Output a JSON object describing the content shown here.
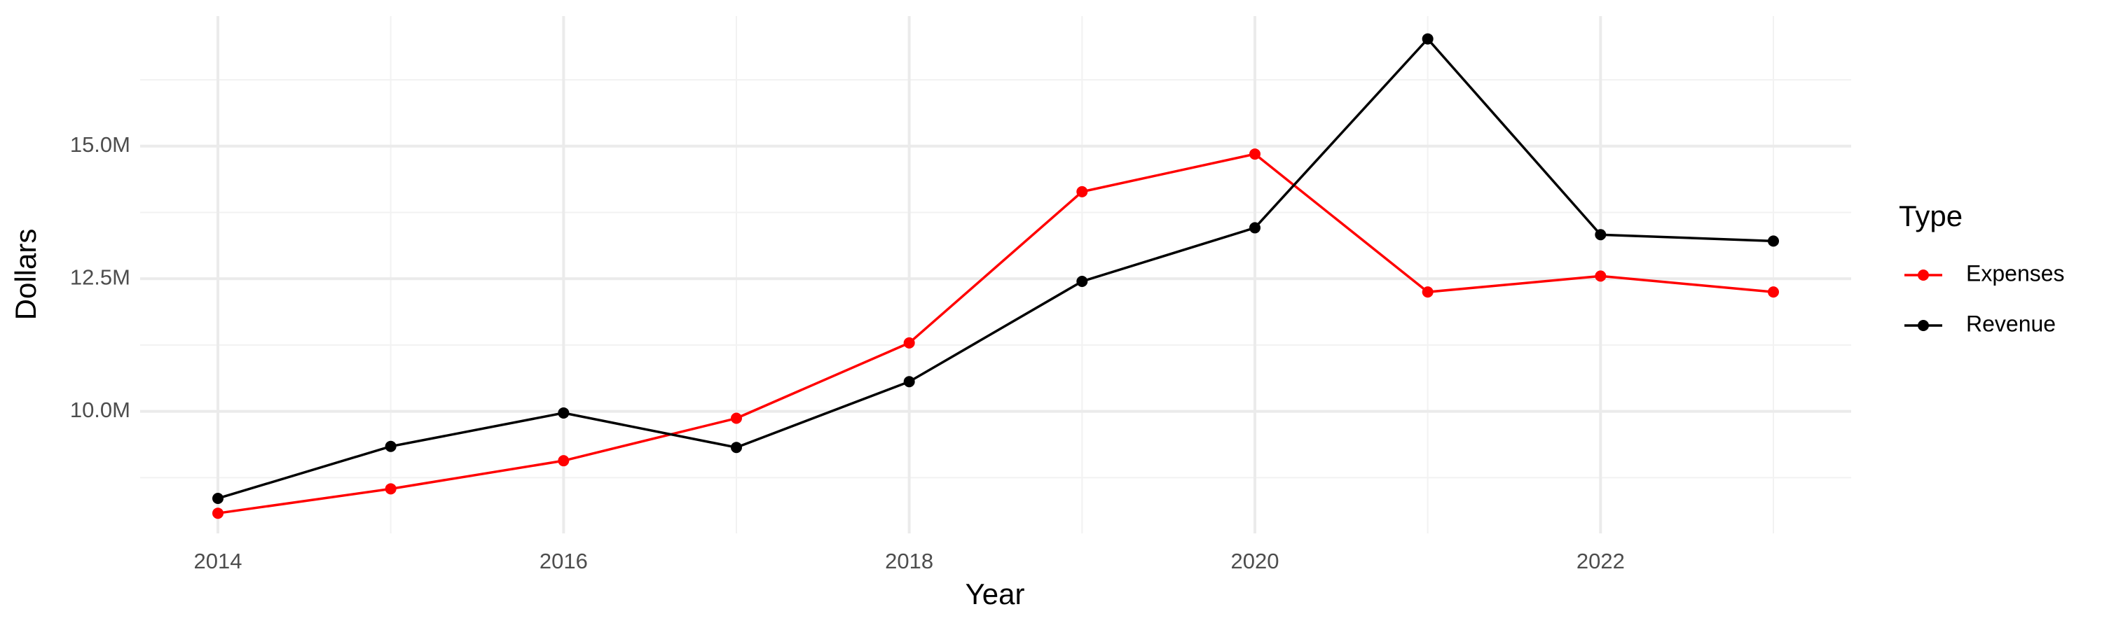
{
  "chart_data": {
    "type": "line",
    "x_label": "Year",
    "y_label": "Dollars",
    "x": [
      2014,
      2015,
      2016,
      2017,
      2018,
      2019,
      2020,
      2021,
      2022,
      2023
    ],
    "series": [
      {
        "name": "Expenses",
        "color": "#ff0000",
        "values": [
          8080000,
          8540000,
          9070000,
          9870000,
          11290000,
          14140000,
          14850000,
          12250000,
          12550000,
          12250000
        ]
      },
      {
        "name": "Revenue",
        "color": "#000000",
        "values": [
          8360000,
          9340000,
          9970000,
          9320000,
          10560000,
          12450000,
          13460000,
          17020000,
          13330000,
          13210000
        ]
      }
    ],
    "xlim": [
      2013.55,
      2023.45
    ],
    "xticks": [
      2014,
      2016,
      2018,
      2020,
      2022
    ],
    "x_minor_gridlines": [
      2015,
      2017,
      2019,
      2021,
      2023
    ],
    "ylim": [
      7700000,
      17450000
    ],
    "yticks": [
      {
        "value": 10000000,
        "label": "10.0M"
      },
      {
        "value": 12500000,
        "label": "12.5M"
      },
      {
        "value": 15000000,
        "label": "15.0M"
      }
    ],
    "y_minor_gridlines": [
      8750000,
      11250000,
      13750000,
      16250000
    ],
    "grid": true,
    "legend_title": "Type",
    "legend_position": "right"
  }
}
